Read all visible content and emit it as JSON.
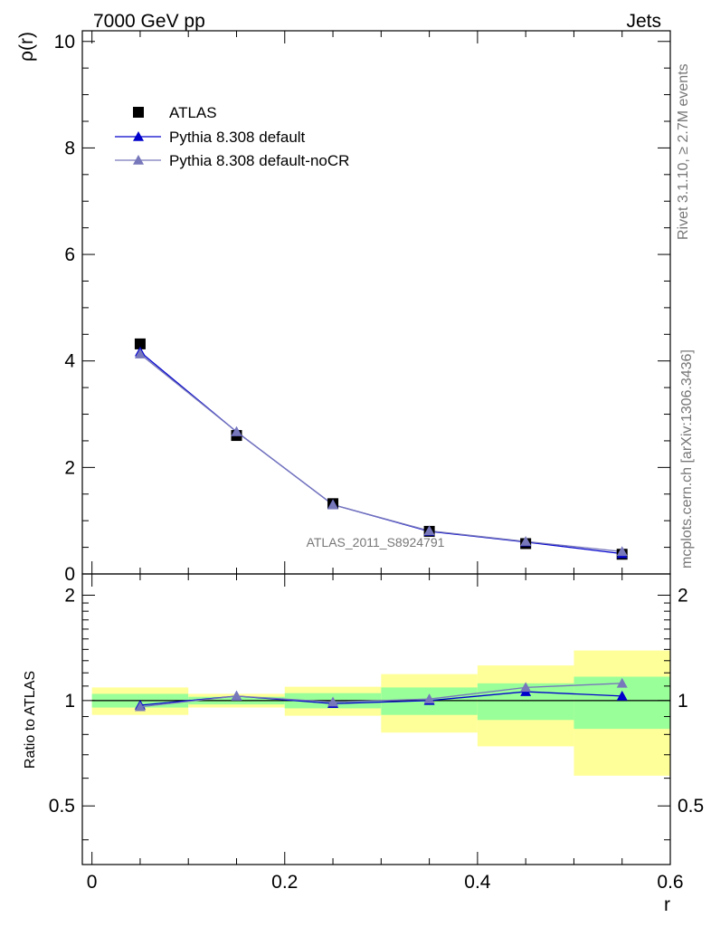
{
  "header": {
    "left": "7000 GeV pp",
    "right": "Jets"
  },
  "side_text": {
    "top": "Rivet 3.1.10, ≥ 2.7M events",
    "bottom": "mcplots.cern.ch [arXiv:1306.3436]"
  },
  "analysis_label": "ATLAS_2011_S8924791",
  "colors": {
    "data": "#000000",
    "default": "#0000cc",
    "noCR": "#7777bb",
    "band_inner": "#99ff99",
    "band_outer": "#ffff99"
  },
  "chart_data": [
    {
      "type": "line",
      "panel": "main",
      "ylabel": "ρ(r)",
      "xlim": [
        -0.01,
        0.6
      ],
      "ylim": [
        0,
        10.2
      ],
      "y_ticks": [
        0,
        2,
        4,
        6,
        8,
        10
      ],
      "y_tick_labels": [
        "0",
        "2",
        "4",
        "6",
        "8",
        "10"
      ],
      "legend_position": "top-left",
      "x": [
        0.05,
        0.15,
        0.25,
        0.35,
        0.45,
        0.55
      ],
      "series": [
        {
          "name": "ATLAS",
          "marker": "square",
          "values": [
            4.32,
            2.6,
            1.32,
            0.8,
            0.57,
            0.37
          ]
        },
        {
          "name": "Pythia 8.308 default",
          "marker": "triangle",
          "values": [
            4.17,
            2.67,
            1.3,
            0.8,
            0.6,
            0.38
          ]
        },
        {
          "name": "Pythia 8.308 default-noCR",
          "marker": "triangle",
          "values": [
            4.13,
            2.67,
            1.3,
            0.81,
            0.61,
            0.42
          ]
        }
      ]
    },
    {
      "type": "line",
      "panel": "ratio",
      "xlabel": "r",
      "ylabel": "Ratio to ATLAS",
      "xlim": [
        -0.01,
        0.6
      ],
      "ylim": [
        0.34,
        2.3
      ],
      "x_ticks": [
        0,
        0.2,
        0.4,
        0.6
      ],
      "x_tick_labels": [
        "0",
        "0.2",
        "0.4",
        "0.6"
      ],
      "y_ticks": [
        0.5,
        1,
        2
      ],
      "y_tick_labels": [
        "0.5",
        "1",
        "2"
      ],
      "bands": [
        {
          "xlo": 0.0,
          "xhi": 0.1,
          "inner": [
            0.955,
            1.045
          ],
          "outer": [
            0.91,
            1.09
          ]
        },
        {
          "xlo": 0.1,
          "xhi": 0.2,
          "inner": [
            0.975,
            1.025
          ],
          "outer": [
            0.955,
            1.045
          ]
        },
        {
          "xlo": 0.2,
          "xhi": 0.3,
          "inner": [
            0.95,
            1.05
          ],
          "outer": [
            0.905,
            1.095
          ]
        },
        {
          "xlo": 0.3,
          "xhi": 0.4,
          "inner": [
            0.91,
            1.09
          ],
          "outer": [
            0.81,
            1.19
          ]
        },
        {
          "xlo": 0.4,
          "xhi": 0.5,
          "inner": [
            0.88,
            1.12
          ],
          "outer": [
            0.74,
            1.26
          ]
        },
        {
          "xlo": 0.5,
          "xhi": 0.6,
          "inner": [
            0.83,
            1.17
          ],
          "outer": [
            0.61,
            1.39
          ]
        }
      ],
      "x": [
        0.05,
        0.15,
        0.25,
        0.35,
        0.45,
        0.55
      ],
      "series": [
        {
          "name": "Pythia 8.308 default",
          "values": [
            0.97,
            1.03,
            0.98,
            1.0,
            1.06,
            1.03
          ]
        },
        {
          "name": "Pythia 8.308 default-noCR",
          "values": [
            0.96,
            1.03,
            0.99,
            1.01,
            1.09,
            1.12
          ]
        }
      ]
    }
  ]
}
